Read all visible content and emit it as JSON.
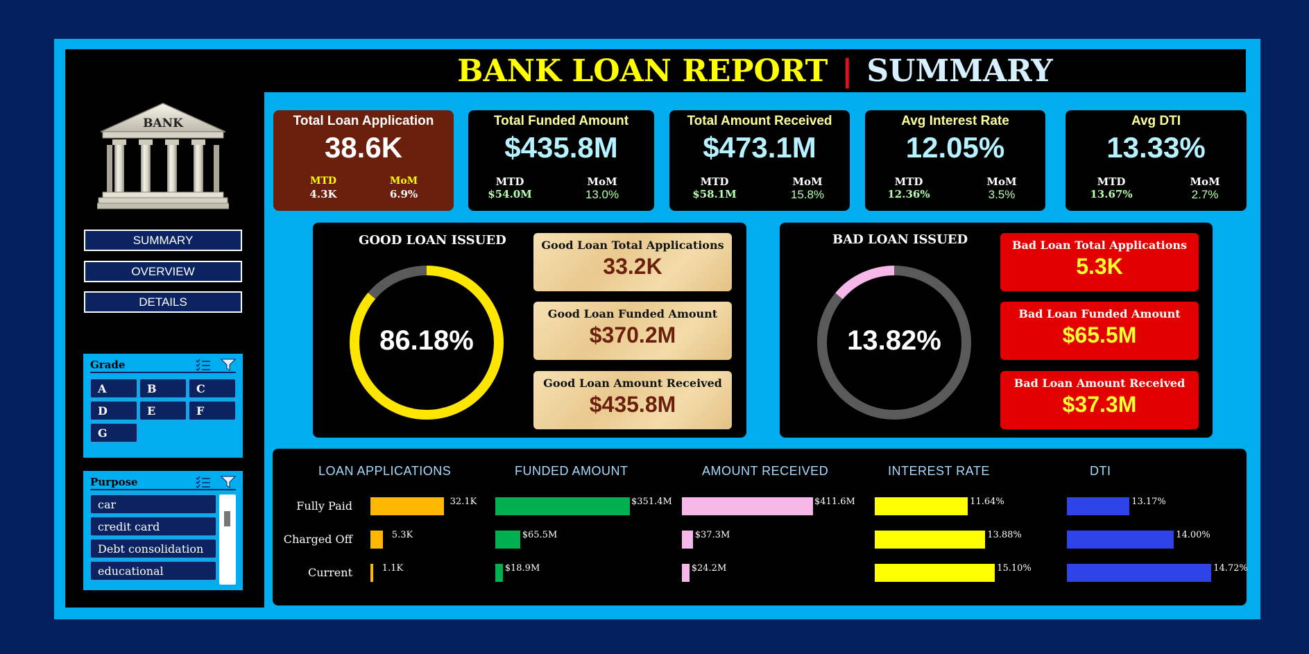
{
  "header": {
    "title": "BANK LOAN REPORT",
    "separator": "|",
    "subtitle": "SUMMARY"
  },
  "logo": {
    "text": "BANK"
  },
  "nav": {
    "summary": "SUMMARY",
    "overview": "OVERVIEW",
    "details": "DETAILS"
  },
  "grade_slicer": {
    "title": "Grade",
    "items": [
      "A",
      "B",
      "C",
      "D",
      "E",
      "F",
      "G"
    ]
  },
  "purpose_slicer": {
    "title": "Purpose",
    "items": [
      "car",
      "credit card",
      "Debt consolidation",
      "educational"
    ]
  },
  "kpis": [
    {
      "title": "Total Loan Application",
      "value": "38.6K",
      "mtd_label": "MTD",
      "mtd": "4.3K",
      "mom_label": "MoM",
      "mom": "6.9%"
    },
    {
      "title": "Total Funded Amount",
      "value": "$435.8M",
      "mtd_label": "MTD",
      "mtd": "$54.0M",
      "mom_label": "MoM",
      "mom": "13.0%"
    },
    {
      "title": "Total Amount Received",
      "value": "$473.1M",
      "mtd_label": "MTD",
      "mtd": "$58.1M",
      "mom_label": "MoM",
      "mom": "15.8%"
    },
    {
      "title": "Avg Interest Rate",
      "value": "12.05%",
      "mtd_label": "MTD",
      "mtd": "12.36%",
      "mom_label": "MoM",
      "mom": "3.5%"
    },
    {
      "title": "Avg DTI",
      "value": "13.33%",
      "mtd_label": "MTD",
      "mtd": "13.67%",
      "mom_label": "MoM",
      "mom": "2.7%"
    }
  ],
  "good_loan": {
    "title": "GOOD LOAN ISSUED",
    "percent_label": "86.18%",
    "percent": 86.18,
    "applications_title": "Good Loan Total Applications",
    "applications": "33.2K",
    "funded_title": "Good Loan Funded Amount",
    "funded": "$370.2M",
    "received_title": "Good Loan Amount Received",
    "received": "$435.8M"
  },
  "bad_loan": {
    "title": "BAD LOAN ISSUED",
    "percent_label": "13.82%",
    "percent": 13.82,
    "applications_title": "Bad Loan Total Applications",
    "applications": "5.3K",
    "funded_title": "Bad Loan Funded Amount",
    "funded": "$65.5M",
    "received_title": "Bad Loan Amount Received",
    "received": "$37.3M"
  },
  "colors": {
    "frame": "#00aeef",
    "good_ring": "#ffe600",
    "bad_ring": "#f5b8e8",
    "ring_track": "#5a5a5a",
    "applications_bar": "#ffb800",
    "funded_bar": "#00b050",
    "received_bar": "#f5b8e8",
    "interest_bar": "#ffff00",
    "dti_bar": "#2e44e8"
  },
  "chart_data": {
    "type": "bar",
    "categories": [
      "Fully Paid",
      "Charged Off",
      "Current"
    ],
    "series": [
      {
        "name": "LOAN APPLICATIONS",
        "values": [
          32.1,
          5.3,
          1.1
        ],
        "labels": [
          "32.1K",
          "5.3K",
          "1.1K"
        ]
      },
      {
        "name": "FUNDED AMOUNT",
        "values": [
          351.4,
          65.5,
          18.9
        ],
        "labels": [
          "$351.4M",
          "$65.5M",
          "$18.9M"
        ]
      },
      {
        "name": "AMOUNT RECEIVED",
        "values": [
          411.6,
          37.3,
          24.2
        ],
        "labels": [
          "$411.6M",
          "$37.3M",
          "$24.2M"
        ]
      },
      {
        "name": "INTEREST RATE",
        "values": [
          11.64,
          13.88,
          15.1
        ],
        "labels": [
          "11.64%",
          "13.88%",
          "15.10%"
        ]
      },
      {
        "name": "DTI",
        "values": [
          13.17,
          14.0,
          14.72
        ],
        "labels": [
          "13.17%",
          "14.00%",
          "14.72%"
        ]
      }
    ]
  }
}
